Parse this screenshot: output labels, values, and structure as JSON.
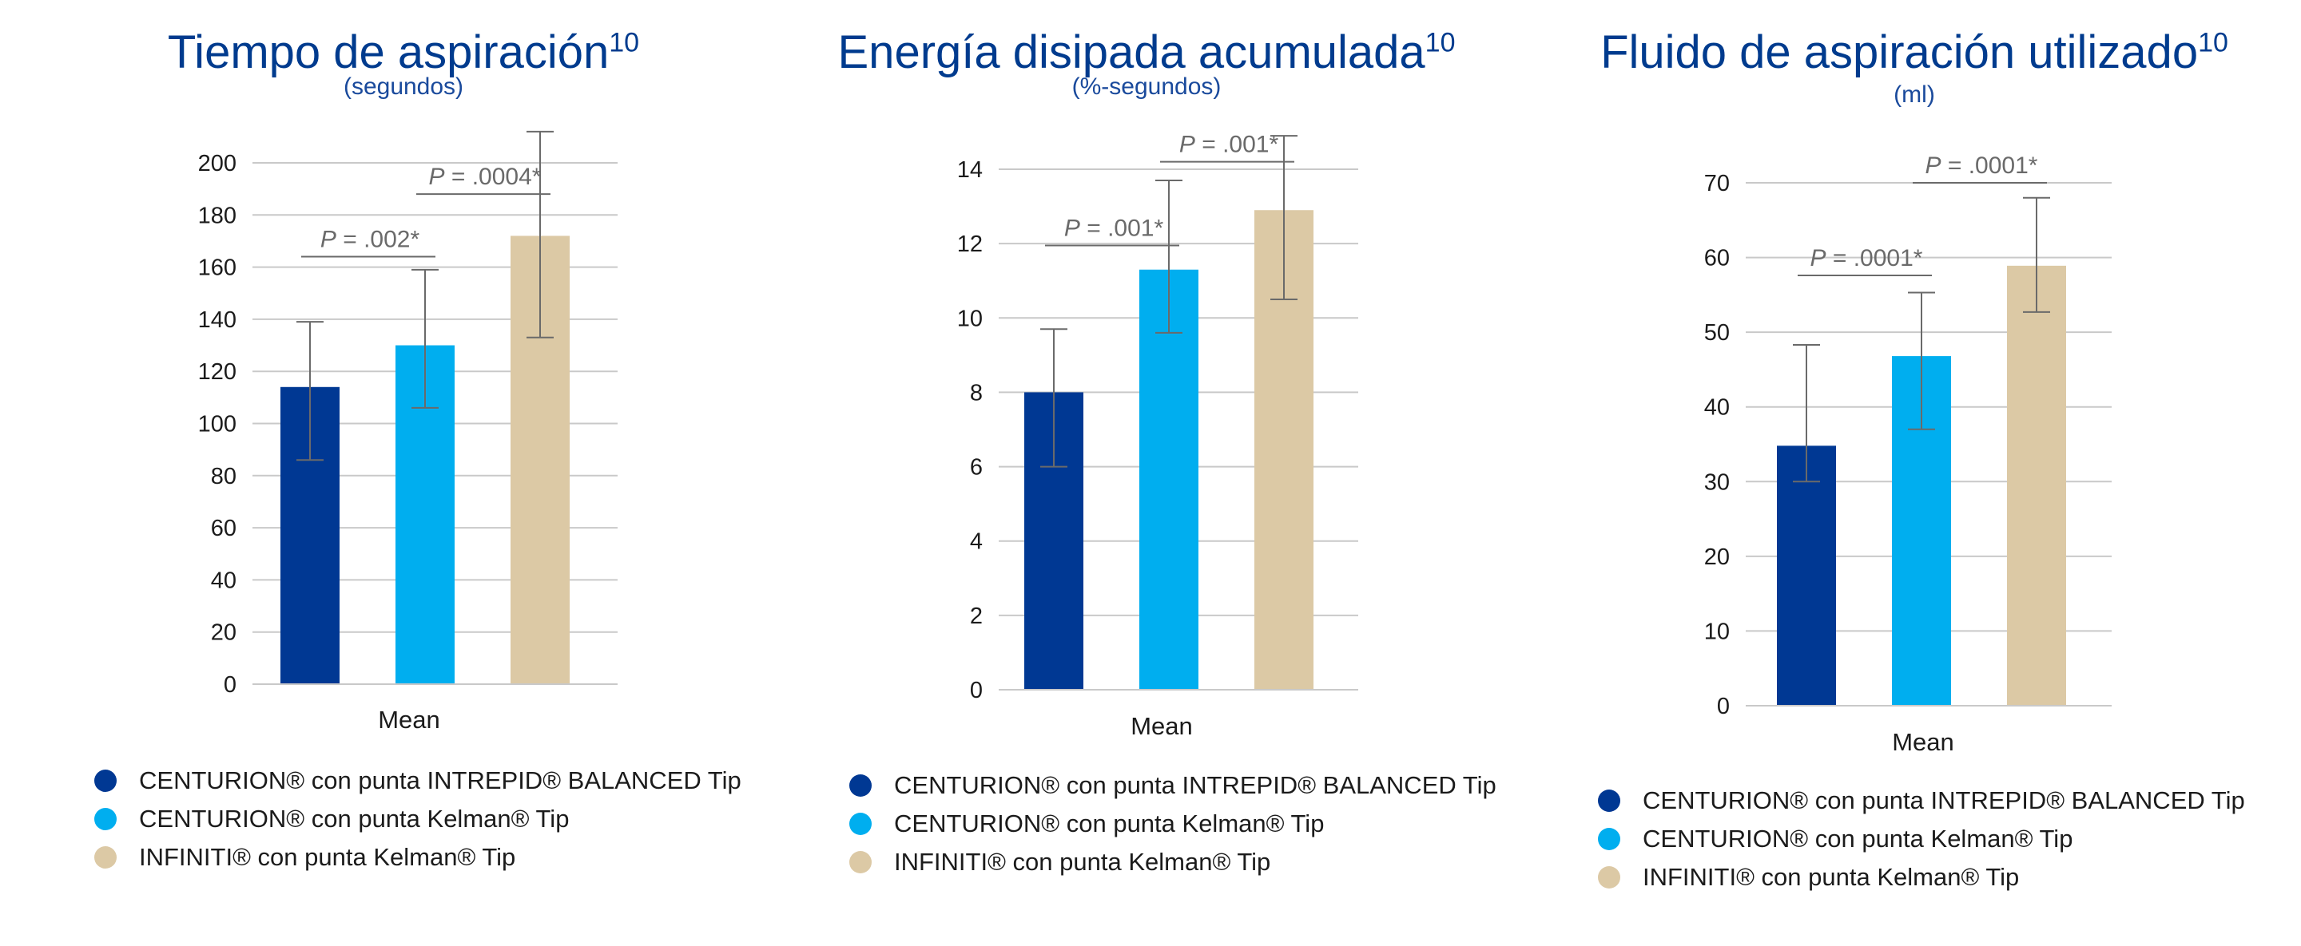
{
  "colors": {
    "series1": "#003893",
    "series2": "#00aeef",
    "series3": "#dcc9a5",
    "title": "#003b8e",
    "grid": "#c9c9c9",
    "error_bar": "#6a6a6a"
  },
  "legend": [
    {
      "label": "CENTURION® con punta INTREPID® BALANCED Tip",
      "color": "#003893"
    },
    {
      "label": "CENTURION® con punta Kelman® Tip",
      "color": "#00aeef"
    },
    {
      "label": "INFINITI® con punta Kelman® Tip",
      "color": "#dcc9a5"
    }
  ],
  "chart_data": [
    {
      "type": "bar",
      "title": "Tiempo de aspiración",
      "title_sup": "10",
      "subtitle": "(segundos)",
      "categories": [
        "Mean"
      ],
      "xlabel": "Mean",
      "ylim": [
        0,
        200
      ],
      "yticks": [
        "0",
        "20",
        "40",
        "60",
        "80",
        "100",
        "120",
        "140",
        "160",
        "180",
        "200"
      ],
      "grid": true,
      "series": [
        {
          "name": "CENTURION® con punta INTREPID® BALANCED Tip",
          "values": [
            114
          ],
          "error_low": [
            86
          ],
          "error_high": [
            139
          ],
          "color": "#003893"
        },
        {
          "name": "CENTURION® con punta Kelman® Tip",
          "values": [
            130
          ],
          "error_low": [
            106
          ],
          "error_high": [
            159
          ],
          "color": "#00aeef"
        },
        {
          "name": "INFINITI® con punta Kelman® Tip",
          "values": [
            172
          ],
          "error_low": [
            133
          ],
          "error_high": [
            212
          ],
          "color": "#dcc9a5"
        }
      ],
      "annotations": [
        {
          "text": "P = .002*",
          "p_label": "P",
          "p_value": " = .002*",
          "from_series": 0,
          "to_series": 1,
          "level": 164
        },
        {
          "text": "P = .0004*",
          "p_label": "P",
          "p_value": " = .0004*",
          "from_series": 1,
          "to_series": 2,
          "level": 188
        }
      ]
    },
    {
      "type": "bar",
      "title": "Energía disipada acumulada",
      "title_sup": "10",
      "subtitle": "(%-segundos)",
      "categories": [
        "Mean"
      ],
      "xlabel": "Mean",
      "ylim": [
        0,
        14
      ],
      "yticks": [
        "0",
        "2",
        "4",
        "6",
        "8",
        "10",
        "12",
        "14"
      ],
      "grid": true,
      "series": [
        {
          "name": "CENTURION® con punta INTREPID® BALANCED Tip",
          "values": [
            8.0
          ],
          "error_low": [
            6.0
          ],
          "error_high": [
            9.7
          ],
          "color": "#003893"
        },
        {
          "name": "CENTURION® con punta Kelman® Tip",
          "values": [
            11.3
          ],
          "error_low": [
            9.6
          ],
          "error_high": [
            13.7
          ],
          "color": "#00aeef"
        },
        {
          "name": "INFINITI® con punta Kelman® Tip",
          "values": [
            12.9
          ],
          "error_low": [
            10.5
          ],
          "error_high": [
            14.9
          ],
          "color": "#dcc9a5"
        }
      ],
      "annotations": [
        {
          "text": "P = .001*",
          "p_label": "P",
          "p_value": " = .001*",
          "from_series": 0,
          "to_series": 1,
          "level": 11.95
        },
        {
          "text": "P = .001*",
          "p_label": "P",
          "p_value": " = .001*",
          "from_series": 1,
          "to_series": 2,
          "level": 14.2
        }
      ]
    },
    {
      "type": "bar",
      "title": "Fluido de aspiración utilizado",
      "title_sup": "10",
      "subtitle": "(ml)",
      "categories": [
        "Mean"
      ],
      "xlabel": "Mean",
      "ylim": [
        0,
        70
      ],
      "yticks": [
        "0",
        "10",
        "20",
        "30",
        "40",
        "50",
        "60",
        "70"
      ],
      "grid": true,
      "series": [
        {
          "name": "CENTURION® con punta INTREPID® BALANCED Tip",
          "values": [
            34.8
          ],
          "error_low": [
            30.0
          ],
          "error_high": [
            48.3
          ],
          "color": "#003893"
        },
        {
          "name": "CENTURION® con punta Kelman® Tip",
          "values": [
            46.8
          ],
          "error_low": [
            37.0
          ],
          "error_high": [
            55.3
          ],
          "color": "#00aeef"
        },
        {
          "name": "INFINITI® con punta Kelman® Tip",
          "values": [
            58.9
          ],
          "error_low": [
            52.7
          ],
          "error_high": [
            68.0
          ],
          "color": "#dcc9a5"
        }
      ],
      "annotations": [
        {
          "text": "P = .0001*",
          "p_label": "P",
          "p_value": " = .0001*",
          "from_series": 0,
          "to_series": 1,
          "level": 57.6
        },
        {
          "text": "P = .0001*",
          "p_label": "P",
          "p_value": " = .0001*",
          "from_series": 1,
          "to_series": 2,
          "level": 70
        }
      ]
    }
  ]
}
